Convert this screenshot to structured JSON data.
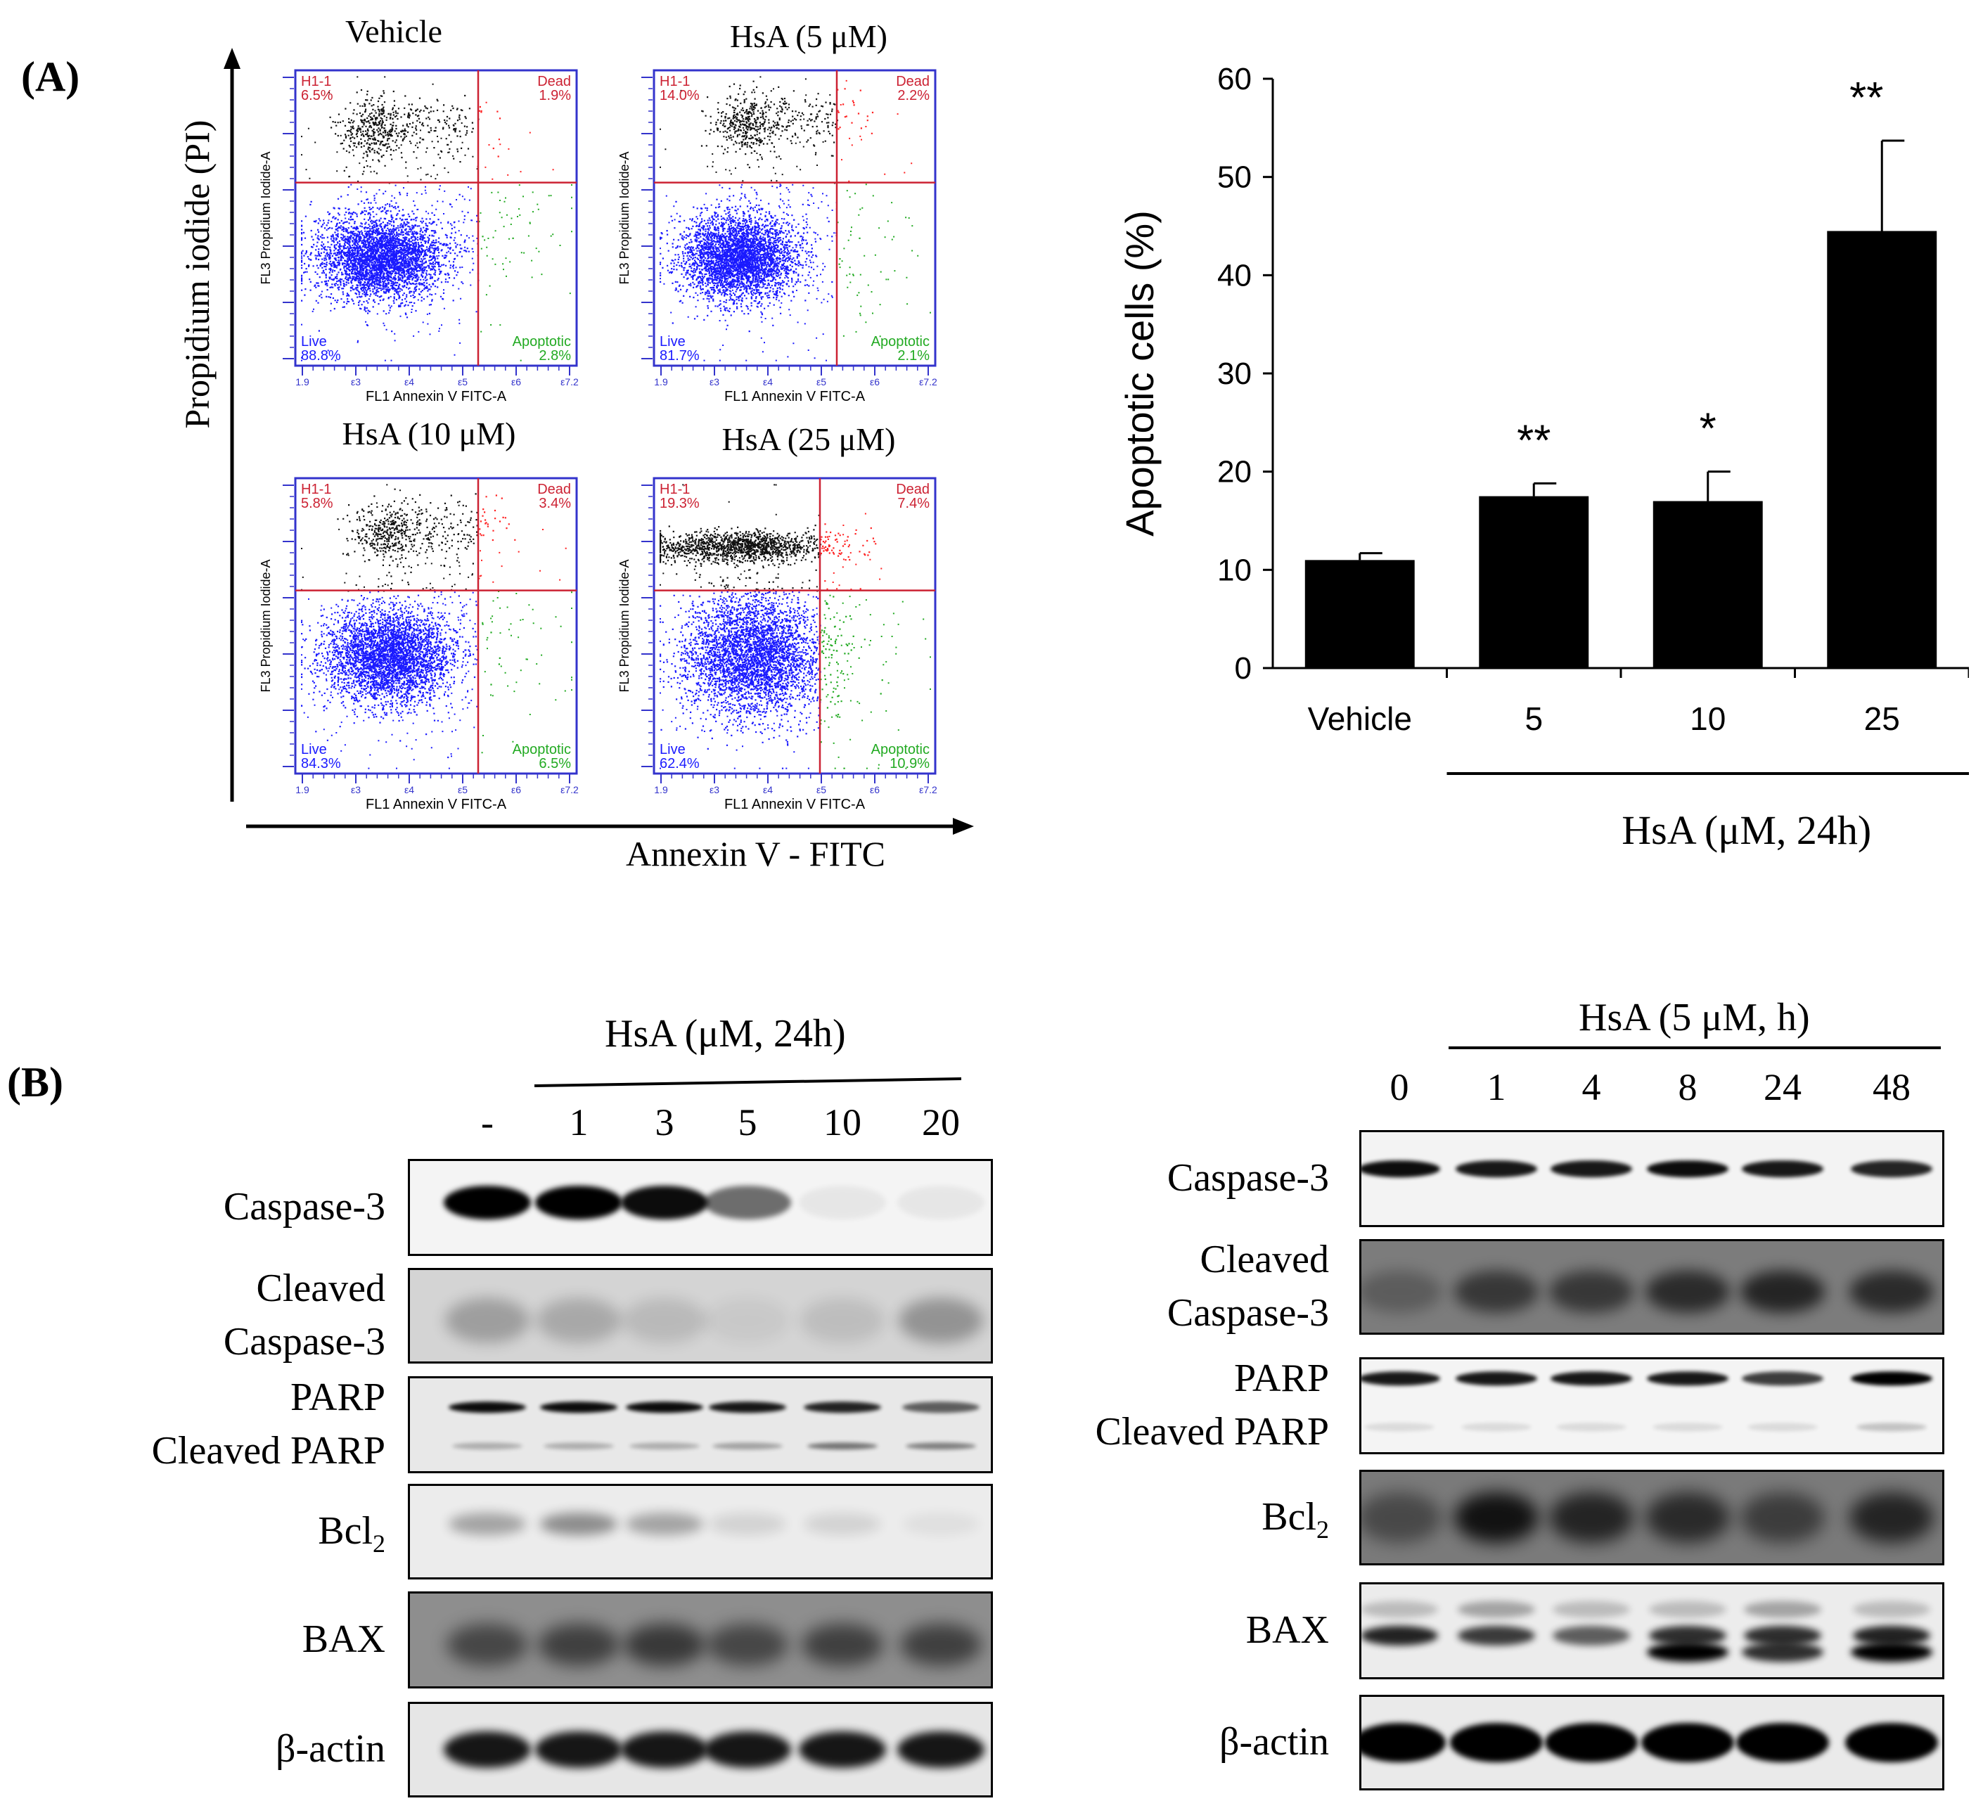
{
  "panel_a": {
    "label": "(A)",
    "facs_y_axis": "Propidium iodide (PI)",
    "facs_x_axis": "Annexin V - FITC",
    "plots": [
      {
        "title": "Vehicle",
        "gate": "H1-1",
        "ul": "6.5%",
        "ur": "1.9%",
        "ll": "88.8%",
        "lr": "2.8%",
        "ylabel": "FL3 Propidium Iodide-A",
        "xlabel": "FL1 Annexin V FITC-A",
        "dead_label": "Dead",
        "live_label": "Live",
        "apop_label": "Apoptotic"
      },
      {
        "title": "HsA (5 μM)",
        "gate": "H1-1",
        "ul": "14.0%",
        "ur": "2.2%",
        "ll": "81.7%",
        "lr": "2.1%",
        "ylabel": "FL3 Propidium Iodide-A",
        "xlabel": "FL1 Annexin V FITC-A",
        "dead_label": "Dead",
        "live_label": "Live",
        "apop_label": "Apoptotic"
      },
      {
        "title": "HsA (10 μM)",
        "gate": "H1-1",
        "ul": "5.8%",
        "ur": "3.4%",
        "ll": "84.3%",
        "lr": "6.5%",
        "ylabel": "FL3 Propidium Iodide-A",
        "xlabel": "FL1 Annexin V FITC-A",
        "dead_label": "Dead",
        "live_label": "Live",
        "apop_label": "Apoptotic"
      },
      {
        "title": "HsA (25 μM)",
        "gate": "H1-1",
        "ul": "19.3%",
        "ur": "7.4%",
        "ll": "62.4%",
        "lr": "10.9%",
        "ylabel": "FL3 Propidium Iodide-A",
        "xlabel": "FL1 Annexin V FITC-A",
        "dead_label": "Dead",
        "live_label": "Live",
        "apop_label": "Apoptotic"
      }
    ],
    "facs_ticks_x": [
      "1.9",
      "ε3",
      "ε4",
      "ε5",
      "ε6",
      "ε7.2"
    ]
  },
  "chart_data": {
    "type": "bar",
    "title": "",
    "categories": [
      "Vehicle",
      "5",
      "10",
      "25"
    ],
    "values": [
      11,
      17.5,
      17,
      44.5
    ],
    "errors": [
      0.7,
      1.3,
      3.0,
      9.2
    ],
    "significance": [
      "",
      "**",
      "*",
      "**"
    ],
    "ylabel": "Apoptotic cells (%)",
    "xlabel": "HsA (μM, 24h)",
    "ylim": [
      0,
      60
    ],
    "yticks": [
      0,
      10,
      20,
      30,
      40,
      50,
      60
    ],
    "color": "#000000"
  },
  "panel_b": {
    "label": "(B)",
    "left": {
      "header": "HsA (μM, 24h)",
      "lanes": [
        "-",
        "1",
        "3",
        "5",
        "10",
        "20"
      ],
      "rows": [
        {
          "label1": "Caspase-3",
          "label2": ""
        },
        {
          "label1": "Cleaved",
          "label2": "Caspase-3"
        },
        {
          "label1": "PARP",
          "label2": "Cleaved PARP"
        },
        {
          "label1": "Bcl",
          "sub": "2",
          "label2": ""
        },
        {
          "label1": "BAX",
          "label2": ""
        },
        {
          "label1": "β-actin",
          "label2": ""
        }
      ]
    },
    "right": {
      "header": "HsA (5 μM, h)",
      "lanes": [
        "0",
        "1",
        "4",
        "8",
        "24",
        "48"
      ],
      "rows": [
        {
          "label1": "Caspase-3",
          "label2": ""
        },
        {
          "label1": "Cleaved",
          "label2": "Caspase-3"
        },
        {
          "label1": "PARP",
          "label2": "Cleaved PARP"
        },
        {
          "label1": "Bcl",
          "sub": "2",
          "label2": ""
        },
        {
          "label1": "BAX",
          "label2": ""
        },
        {
          "label1": "β-actin",
          "label2": ""
        }
      ]
    }
  }
}
